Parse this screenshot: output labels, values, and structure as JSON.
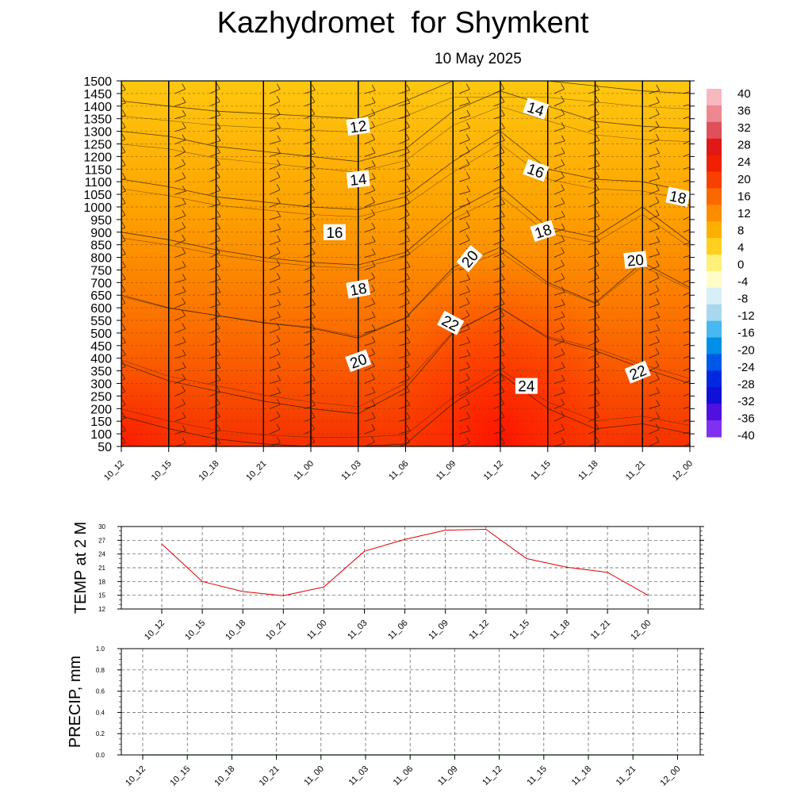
{
  "header": {
    "title": "Kazhydromet  for Shymkent",
    "date": "10 May 2025"
  },
  "chart_data": [
    {
      "type": "heatmap",
      "panel": "temperature-cross-section",
      "x": [
        "10_12",
        "10_15",
        "10_18",
        "10_21",
        "11_00",
        "11_03",
        "11_06",
        "11_09",
        "11_12",
        "11_15",
        "11_18",
        "11_21",
        "12_00"
      ],
      "y_levels": [
        50,
        100,
        150,
        200,
        250,
        300,
        350,
        400,
        450,
        500,
        550,
        600,
        650,
        700,
        750,
        800,
        850,
        900,
        950,
        1000,
        1050,
        1100,
        1150,
        1200,
        1250,
        1300,
        1350,
        1400,
        1450,
        1500
      ],
      "y_tick_labels": [
        "50",
        "100",
        "150",
        "200",
        "250",
        "300",
        "350",
        "400",
        "450",
        "500",
        "550",
        "600",
        "650",
        "700",
        "750",
        "800",
        "850",
        "900",
        "950",
        "1000",
        "1050",
        "1100",
        "1150",
        "1200",
        "1250",
        "1300",
        "1350",
        "1400",
        "1450",
        "1500"
      ],
      "ylim": [
        50,
        1500
      ],
      "contour_profiles": [
        {
          "level": 12,
          "y": [
            1420,
            1400,
            1380,
            1370,
            1360,
            1350,
            1420,
            1500,
            1500,
            1500,
            1480,
            1460,
            1450
          ]
        },
        {
          "level": 14,
          "y": [
            1300,
            1280,
            1240,
            1220,
            1200,
            1180,
            1230,
            1380,
            1460,
            1400,
            1340,
            1320,
            1310
          ]
        },
        {
          "level": 16,
          "y": [
            1110,
            1080,
            1040,
            1020,
            1000,
            990,
            1040,
            1180,
            1300,
            1150,
            1110,
            1100,
            1060
          ]
        },
        {
          "level": 18,
          "y": [
            900,
            870,
            830,
            800,
            780,
            770,
            820,
            980,
            1080,
            920,
            880,
            1000,
            860
          ]
        },
        {
          "level": 20,
          "y": [
            650,
            600,
            570,
            540,
            520,
            480,
            560,
            760,
            840,
            700,
            620,
            780,
            680
          ]
        },
        {
          "level": 22,
          "y": [
            380,
            310,
            270,
            230,
            200,
            180,
            280,
            500,
            600,
            480,
            430,
            360,
            300
          ]
        },
        {
          "level": 24,
          "y": [
            170,
            120,
            80,
            60,
            50,
            50,
            60,
            220,
            340,
            200,
            120,
            140,
            100
          ]
        }
      ],
      "contour_labels": [
        {
          "text": "12",
          "x": 5.0,
          "y": 1320
        },
        {
          "text": "14",
          "x": 5.0,
          "y": 1110
        },
        {
          "text": "16",
          "x": 4.5,
          "y": 900
        },
        {
          "text": "18",
          "x": 5.0,
          "y": 675
        },
        {
          "text": "20",
          "x": 5.0,
          "y": 390
        },
        {
          "text": "14",
          "x": 8.75,
          "y": 1390
        },
        {
          "text": "16",
          "x": 8.75,
          "y": 1145
        },
        {
          "text": "18",
          "x": 8.9,
          "y": 905
        },
        {
          "text": "20",
          "x": 7.35,
          "y": 795
        },
        {
          "text": "22",
          "x": 6.95,
          "y": 540
        },
        {
          "text": "24",
          "x": 8.55,
          "y": 290
        },
        {
          "text": "20",
          "x": 10.85,
          "y": 790
        },
        {
          "text": "22",
          "x": 10.9,
          "y": 345
        },
        {
          "text": "18",
          "x": 11.75,
          "y": 1040
        }
      ],
      "colorbar": {
        "labels": [
          "40",
          "36",
          "32",
          "28",
          "24",
          "20",
          "16",
          "12",
          "8",
          "4",
          "0",
          "-4",
          "-8",
          "-12",
          "-16",
          "-20",
          "-24",
          "-28",
          "-32",
          "-36",
          "-40"
        ],
        "colors": [
          "#f8b8c0",
          "#ee8890",
          "#e05058",
          "#e01818",
          "#f02000",
          "#f84000",
          "#fc6800",
          "#fd8c00",
          "#feb000",
          "#ffd020",
          "#fff078",
          "#fffcc8",
          "#d8eef8",
          "#a8d8f0",
          "#48b8f0",
          "#0090e8",
          "#0058e8",
          "#0028e0",
          "#1010d8",
          "#5010e0",
          "#8030f0"
        ]
      }
    },
    {
      "type": "line",
      "panel": "temperature-2m",
      "ylabel": "TEMP at 2 M",
      "categories": [
        "10_12",
        "10_15",
        "10_18",
        "10_21",
        "11_00",
        "11_03",
        "11_06",
        "11_09",
        "11_12",
        "11_15",
        "11_18",
        "11_21",
        "12_00"
      ],
      "series": [
        {
          "values": [
            26.2,
            18.0,
            15.8,
            14.9,
            16.8,
            24.6,
            27.2,
            29.2,
            29.4,
            23.0,
            21.1,
            20.0,
            15.0
          ],
          "color": "#e00000"
        }
      ],
      "ylim": [
        12,
        30
      ],
      "yticks": [
        "12",
        "15",
        "18",
        "21",
        "24",
        "27",
        "30"
      ]
    },
    {
      "type": "line",
      "panel": "precipitation",
      "ylabel": "PRECIP, mm",
      "categories": [
        "10_12",
        "10_15",
        "10_18",
        "10_21",
        "11_00",
        "11_03",
        "11_06",
        "11_09",
        "11_12",
        "11_15",
        "11_18",
        "11_21",
        "12_00"
      ],
      "series": [
        {
          "values": [
            0,
            0,
            0,
            0,
            0,
            0,
            0,
            0,
            0,
            0,
            0,
            0,
            0
          ],
          "color": "#007000"
        }
      ],
      "ylim": [
        0,
        1
      ],
      "yticks": [
        "0.0",
        "0.2",
        "0.4",
        "0.6",
        "0.8",
        "1.0"
      ]
    }
  ]
}
